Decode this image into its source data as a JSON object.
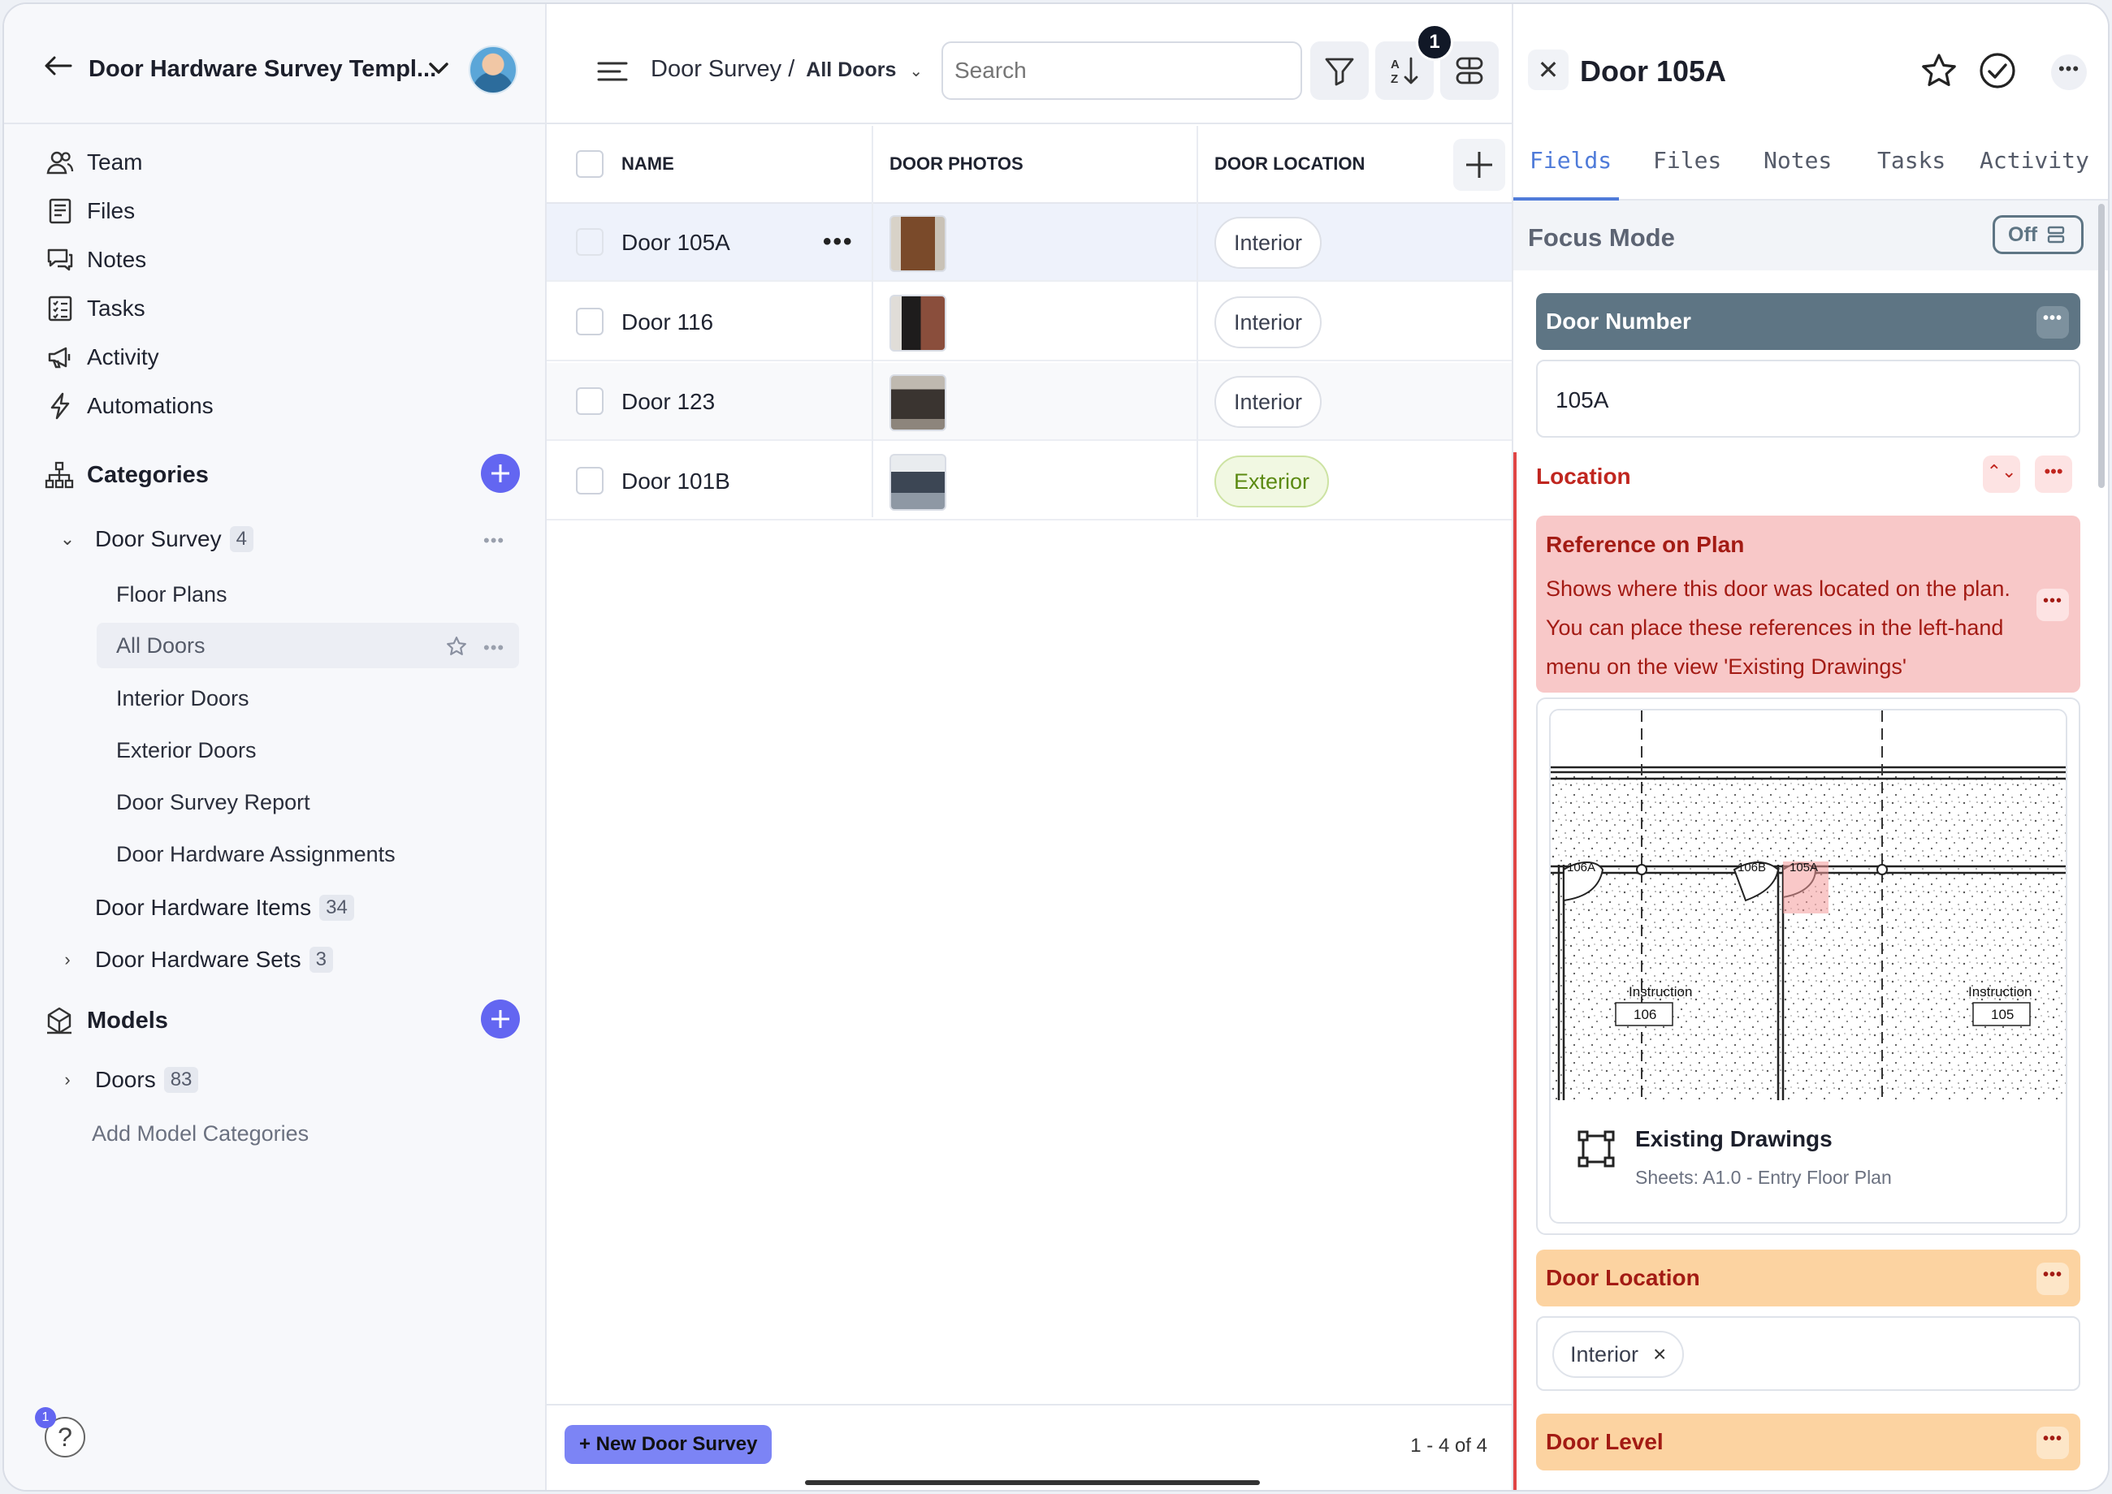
{
  "sidebar": {
    "workspace_title": "Door Hardware Survey Templ...",
    "nav": [
      "Team",
      "Files",
      "Notes",
      "Tasks",
      "Activity",
      "Automations"
    ],
    "categories_label": "Categories",
    "door_survey": {
      "label": "Door Survey",
      "count": "4"
    },
    "views": [
      "Floor Plans",
      "All Doors",
      "Interior Doors",
      "Exterior Doors",
      "Door Survey Report",
      "Door Hardware Assignments"
    ],
    "hardware_items": {
      "label": "Door Hardware Items",
      "count": "34"
    },
    "hardware_sets": {
      "label": "Door Hardware Sets",
      "count": "3"
    },
    "models_label": "Models",
    "doors": {
      "label": "Doors",
      "count": "83"
    },
    "add_model": "Add Model Categories",
    "help_badge": "1",
    "help_glyph": "?"
  },
  "header": {
    "breadcrumb_parent": "Door Survey /",
    "breadcrumb_current": "All Doors",
    "search_placeholder": "Search",
    "notification_count": "1"
  },
  "table": {
    "columns": [
      "NAME",
      "DOOR PHOTOS",
      "DOOR LOCATION"
    ],
    "rows": [
      {
        "name": "Door 105A",
        "location": "Interior",
        "photo_color": "#7a4a2a"
      },
      {
        "name": "Door 116",
        "location": "Interior",
        "photo_color": "#5a3a30"
      },
      {
        "name": "Door 123",
        "location": "Interior",
        "photo_color": "#3a3430"
      },
      {
        "name": "Door 101B",
        "location": "Exterior",
        "photo_color": "#3c4654"
      }
    ],
    "row_more": "•••",
    "new_button": "+ New Door Survey",
    "pager": "1 - 4 of 4"
  },
  "detail": {
    "title": "Door 105A",
    "tabs": [
      "Fields",
      "Files",
      "Notes",
      "Tasks",
      "Activity"
    ],
    "focus_mode_label": "Focus Mode",
    "focus_mode_value": "Off",
    "door_number_label": "Door Number",
    "door_number_value": "105A",
    "location_label": "Location",
    "reference_title": "Reference on Plan",
    "reference_text": "Shows where this door was located on the plan. You can place these references in the left-hand menu on the view 'Existing Drawings'",
    "plan_labels": [
      "106A",
      "106B",
      "105A",
      "Instruction",
      "106",
      "Instruction",
      "105"
    ],
    "drawing_title": "Existing Drawings",
    "drawing_subtitle": "Sheets: A1.0 - Entry Floor Plan",
    "door_location_label": "Door Location",
    "door_location_value": "Interior",
    "chip_remove": "×",
    "door_level_label": "Door Level",
    "close_glyph": "✕",
    "more_glyph": "•••",
    "sort_glyph": "⌃⌄"
  },
  "colors": {
    "accent": "#6366f1",
    "tab_active": "#4f7bd9",
    "door_number_header": "#5e7584",
    "reference_bg": "#f8c8c8",
    "location_red": "#c0261f",
    "orange_header": "#fcd3a1"
  }
}
